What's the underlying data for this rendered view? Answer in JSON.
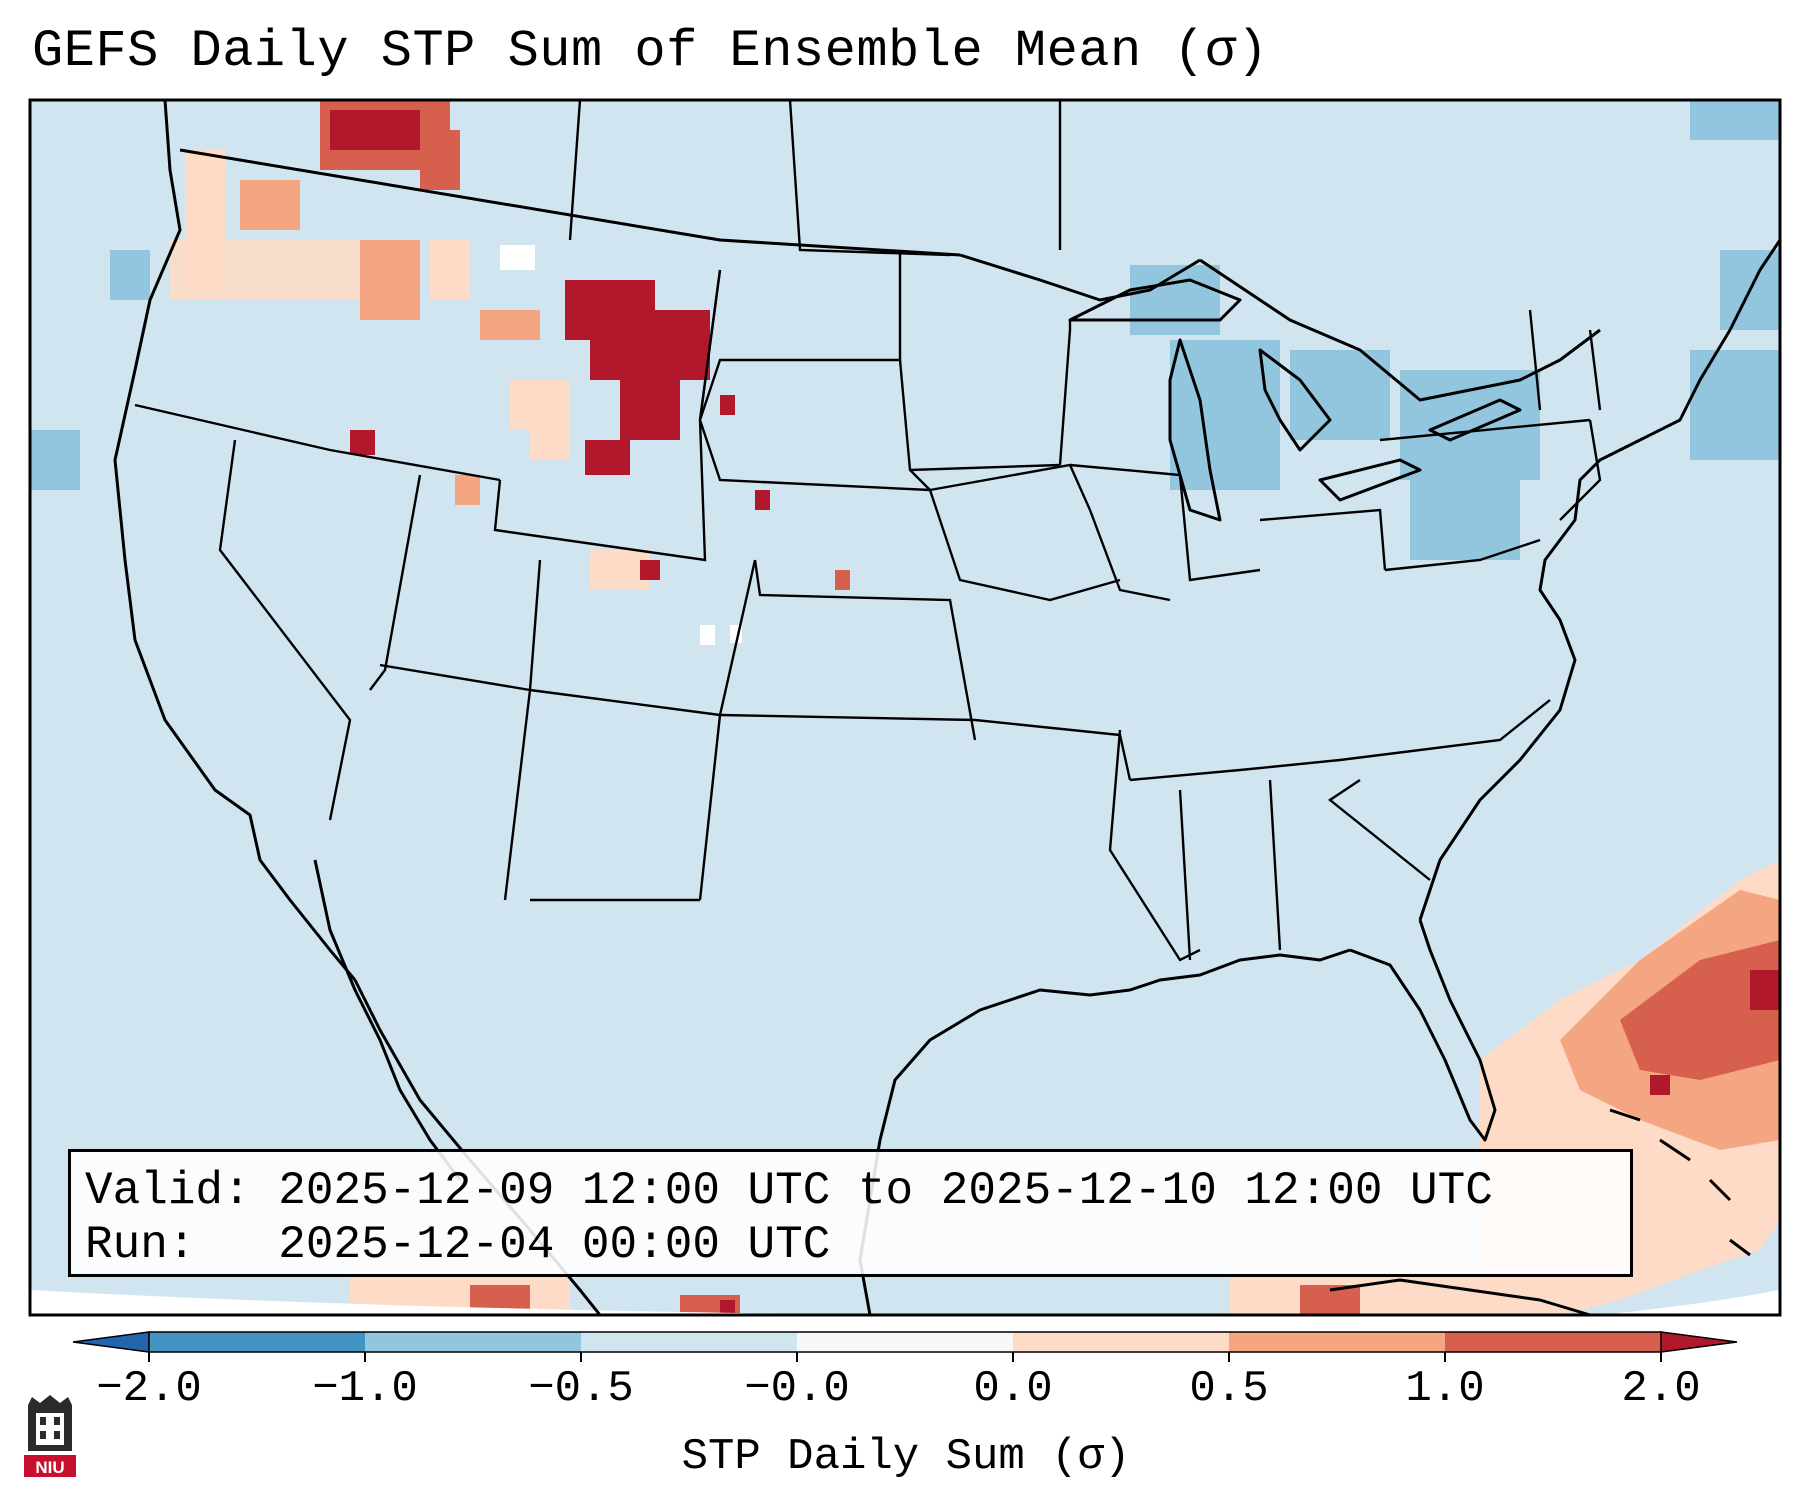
{
  "title": "GEFS Daily STP Sum of Ensemble Mean (σ)",
  "info": {
    "valid_label": "Valid:",
    "valid_value": "2025-12-09 12:00 UTC to 2025-12-10 12:00 UTC",
    "run_label": "Run:",
    "run_value": "2025-12-04 00:00 UTC"
  },
  "colorbar": {
    "label": "STP Daily Sum (σ)",
    "ticks": [
      "−2.0",
      "−1.0",
      "−0.5",
      "−0.0",
      "0.0",
      "0.5",
      "1.0",
      "2.0"
    ],
    "bins": [
      {
        "from": -2.0,
        "to": -1.0,
        "color": "#4393c3"
      },
      {
        "from": -1.0,
        "to": -0.5,
        "color": "#92c5de"
      },
      {
        "from": -0.5,
        "to": -0.0,
        "color": "#d1e5f0"
      },
      {
        "from": -0.0,
        "to": 0.0,
        "color": "#f7f7f7"
      },
      {
        "from": 0.0,
        "to": 0.5,
        "color": "#fddbc7"
      },
      {
        "from": 0.5,
        "to": 1.0,
        "color": "#f4a582"
      },
      {
        "from": 1.0,
        "to": 2.0,
        "color": "#d6604d"
      }
    ],
    "under_color": "#2166ac",
    "over_color": "#b2182b"
  },
  "colors": {
    "background": "#d1e5f0",
    "positive_low": "#fddbc7",
    "positive_mid": "#f4a582",
    "positive_high": "#d6604d",
    "positive_max": "#b2182b",
    "negative_low": "#92c5de",
    "neutral": "#f7f7f7"
  },
  "logo": {
    "text": "NIU"
  }
}
